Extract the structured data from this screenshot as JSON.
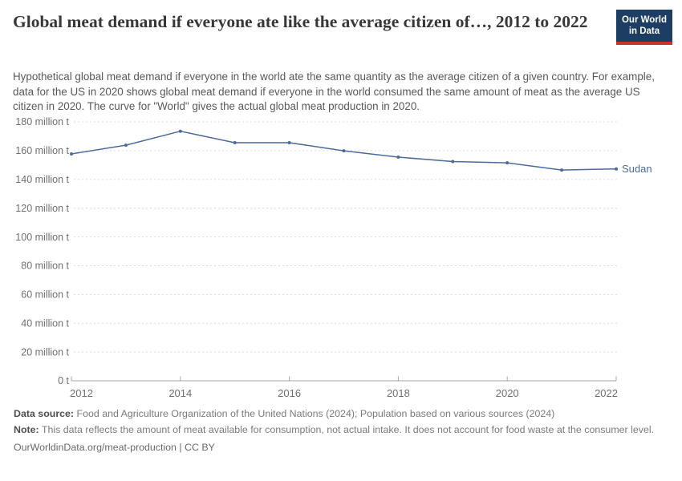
{
  "header": {
    "title": "Global meat demand if everyone ate like the average citizen of…, 2012 to 2022",
    "logo": {
      "line1": "Our World",
      "line2": "in Data"
    }
  },
  "subtitle": "Hypothetical global meat demand if everyone in the world ate the same quantity as the average citizen of a given country. For example, data for the US in 2020 shows global meat demand if everyone in the world consumed the same amount of meat as the average US citizen in 2020. The curve for \"World\" gives the actual global meat production in 2020.",
  "chart_data": {
    "type": "line",
    "title": "Global meat demand if everyone ate like the average citizen of…, 2012 to 2022",
    "x": [
      2012,
      2013,
      2014,
      2015,
      2016,
      2017,
      2018,
      2019,
      2020,
      2021,
      2022
    ],
    "series": [
      {
        "name": "Sudan",
        "values": [
          157.7,
          163.8,
          173.5,
          165.5,
          165.5,
          159.9,
          155.5,
          152.4,
          151.5,
          146.5,
          147.3
        ],
        "color": "#4C6A9C"
      }
    ],
    "unit": "million t",
    "ylim": [
      0,
      180
    ],
    "yticks": [
      0,
      20,
      40,
      60,
      80,
      100,
      120,
      140,
      160,
      180
    ],
    "ytick_labels": [
      "0 t",
      "20 million t",
      "40 million t",
      "60 million t",
      "80 million t",
      "100 million t",
      "120 million t",
      "140 million t",
      "160 million t",
      "180 million t"
    ],
    "xticks": [
      2012,
      2014,
      2016,
      2018,
      2020,
      2022
    ],
    "xtick_labels": [
      "2012",
      "2014",
      "2016",
      "2018",
      "2020",
      "2022"
    ],
    "grid": "horizontal-dashed",
    "legend_position": "end-of-line-label"
  },
  "colors": {
    "series_blue": "#4C6A9C",
    "grid_line": "#dcdcdc",
    "axis_line": "#a6a6a6",
    "tick_label": "#6f6f6f",
    "logo_bg": "#1d3d63",
    "logo_stripe": "#cc342a"
  },
  "footer": {
    "data_source_label": "Data source:",
    "data_source_text": " Food and Agriculture Organization of the United Nations (2024); Population based on various sources (2024)",
    "note_label": "Note:",
    "note_text": " This data reflects the amount of meat available for consumption, not actual intake. It does not account for food waste at the consumer level.",
    "origin_text": "OurWorldinData.org/meat-production | CC BY"
  }
}
